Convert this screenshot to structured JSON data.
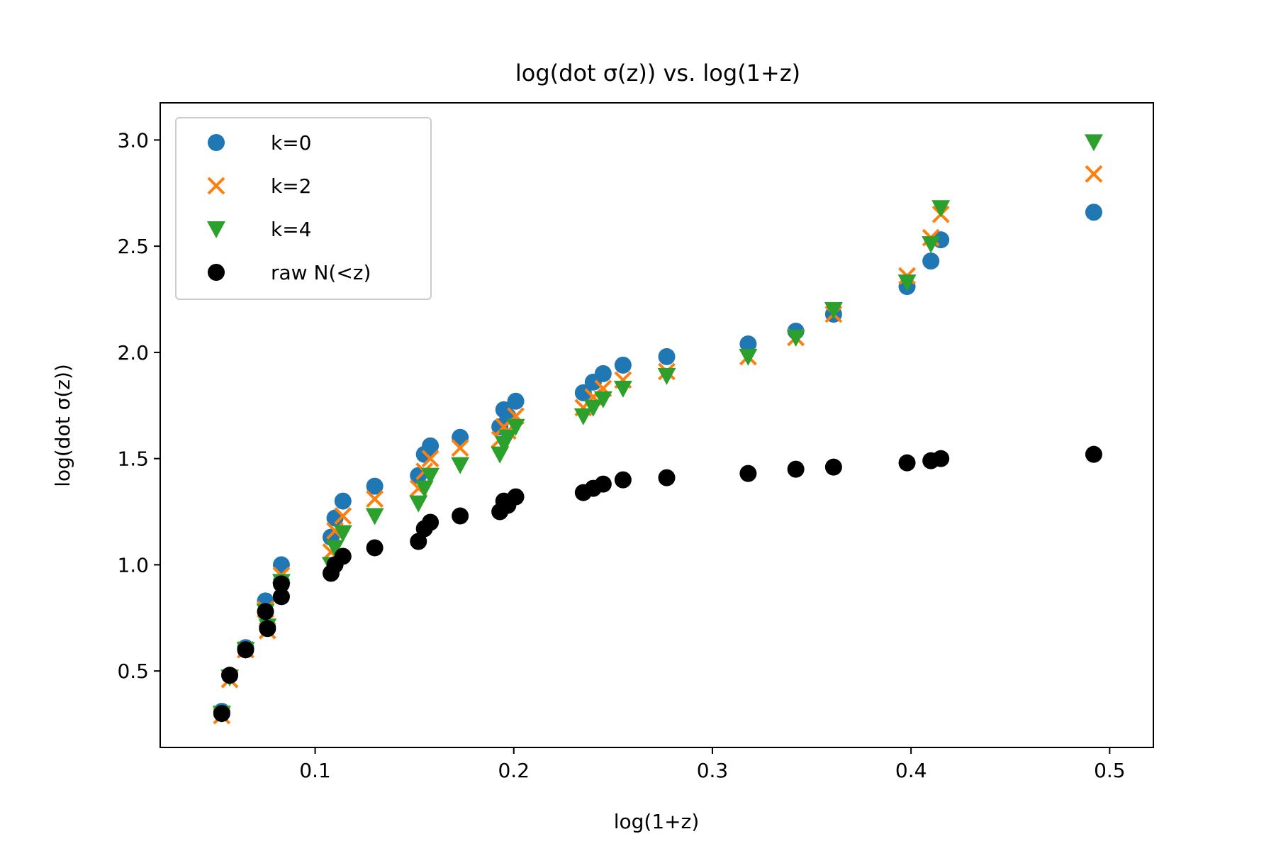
{
  "chart_data": {
    "type": "scatter",
    "title": "log(dot σ(z)) vs. log(1+z)",
    "xlabel": "log(1+z)",
    "ylabel": "log(dot σ(z))",
    "xlim": [
      0.022,
      0.522
    ],
    "ylim": [
      0.14,
      3.175
    ],
    "xticks": [
      0.1,
      0.2,
      0.3,
      0.4,
      0.5
    ],
    "xtick_labels": [
      "0.1",
      "0.2",
      "0.3",
      "0.4",
      "0.5"
    ],
    "yticks": [
      0.5,
      1.0,
      1.5,
      2.0,
      2.5,
      3.0
    ],
    "ytick_labels": [
      "0.5",
      "1.0",
      "1.5",
      "2.0",
      "2.5",
      "3.0"
    ],
    "grid": false,
    "legend_position": "upper-left",
    "series": [
      {
        "name": "k=0",
        "marker": "circle",
        "color": "#1f77b4",
        "x": [
          0.053,
          0.057,
          0.065,
          0.075,
          0.076,
          0.083,
          0.083,
          0.108,
          0.11,
          0.114,
          0.13,
          0.152,
          0.155,
          0.158,
          0.173,
          0.193,
          0.195,
          0.197,
          0.201,
          0.235,
          0.24,
          0.245,
          0.255,
          0.277,
          0.318,
          0.342,
          0.361,
          0.398,
          0.41,
          0.415,
          0.492
        ],
        "y": [
          0.31,
          0.48,
          0.61,
          0.83,
          0.71,
          1.0,
          0.92,
          1.13,
          1.22,
          1.3,
          1.37,
          1.42,
          1.52,
          1.56,
          1.6,
          1.65,
          1.73,
          1.7,
          1.77,
          1.81,
          1.86,
          1.9,
          1.94,
          1.98,
          2.04,
          2.1,
          2.18,
          2.31,
          2.43,
          2.53,
          2.66
        ]
      },
      {
        "name": "k=2",
        "marker": "x",
        "color": "#ff7f0e",
        "x": [
          0.053,
          0.057,
          0.065,
          0.075,
          0.076,
          0.083,
          0.083,
          0.108,
          0.11,
          0.114,
          0.13,
          0.152,
          0.155,
          0.158,
          0.173,
          0.193,
          0.195,
          0.197,
          0.201,
          0.235,
          0.24,
          0.245,
          0.255,
          0.277,
          0.318,
          0.342,
          0.361,
          0.398,
          0.41,
          0.415,
          0.492
        ],
        "y": [
          0.29,
          0.46,
          0.6,
          0.79,
          0.69,
          0.95,
          0.89,
          1.06,
          1.16,
          1.23,
          1.31,
          1.36,
          1.44,
          1.5,
          1.55,
          1.59,
          1.65,
          1.63,
          1.7,
          1.74,
          1.79,
          1.83,
          1.87,
          1.91,
          1.98,
          2.07,
          2.18,
          2.36,
          2.54,
          2.65,
          2.84
        ]
      },
      {
        "name": "k=4",
        "marker": "triangle-down",
        "color": "#2ca02c",
        "x": [
          0.053,
          0.057,
          0.065,
          0.075,
          0.076,
          0.083,
          0.083,
          0.108,
          0.11,
          0.114,
          0.13,
          0.152,
          0.155,
          0.158,
          0.173,
          0.193,
          0.195,
          0.197,
          0.201,
          0.235,
          0.24,
          0.245,
          0.255,
          0.277,
          0.318,
          0.342,
          0.361,
          0.398,
          0.41,
          0.415,
          0.492
        ],
        "y": [
          0.3,
          0.47,
          0.6,
          0.78,
          0.71,
          0.92,
          0.88,
          1.0,
          1.08,
          1.15,
          1.23,
          1.29,
          1.36,
          1.42,
          1.47,
          1.52,
          1.57,
          1.6,
          1.65,
          1.7,
          1.74,
          1.78,
          1.83,
          1.89,
          1.98,
          2.07,
          2.2,
          2.33,
          2.51,
          2.68,
          2.99
        ]
      },
      {
        "name": "raw N(<z)",
        "marker": "circle",
        "color": "#000000",
        "x": [
          0.053,
          0.057,
          0.065,
          0.075,
          0.076,
          0.083,
          0.083,
          0.108,
          0.11,
          0.114,
          0.13,
          0.152,
          0.155,
          0.158,
          0.173,
          0.193,
          0.195,
          0.197,
          0.201,
          0.235,
          0.24,
          0.245,
          0.255,
          0.277,
          0.318,
          0.342,
          0.361,
          0.398,
          0.41,
          0.415,
          0.492
        ],
        "y": [
          0.3,
          0.48,
          0.6,
          0.78,
          0.7,
          0.91,
          0.85,
          0.96,
          1.0,
          1.04,
          1.08,
          1.11,
          1.17,
          1.2,
          1.23,
          1.25,
          1.3,
          1.28,
          1.32,
          1.34,
          1.36,
          1.38,
          1.4,
          1.41,
          1.43,
          1.45,
          1.46,
          1.48,
          1.49,
          1.5,
          1.52
        ]
      }
    ]
  }
}
